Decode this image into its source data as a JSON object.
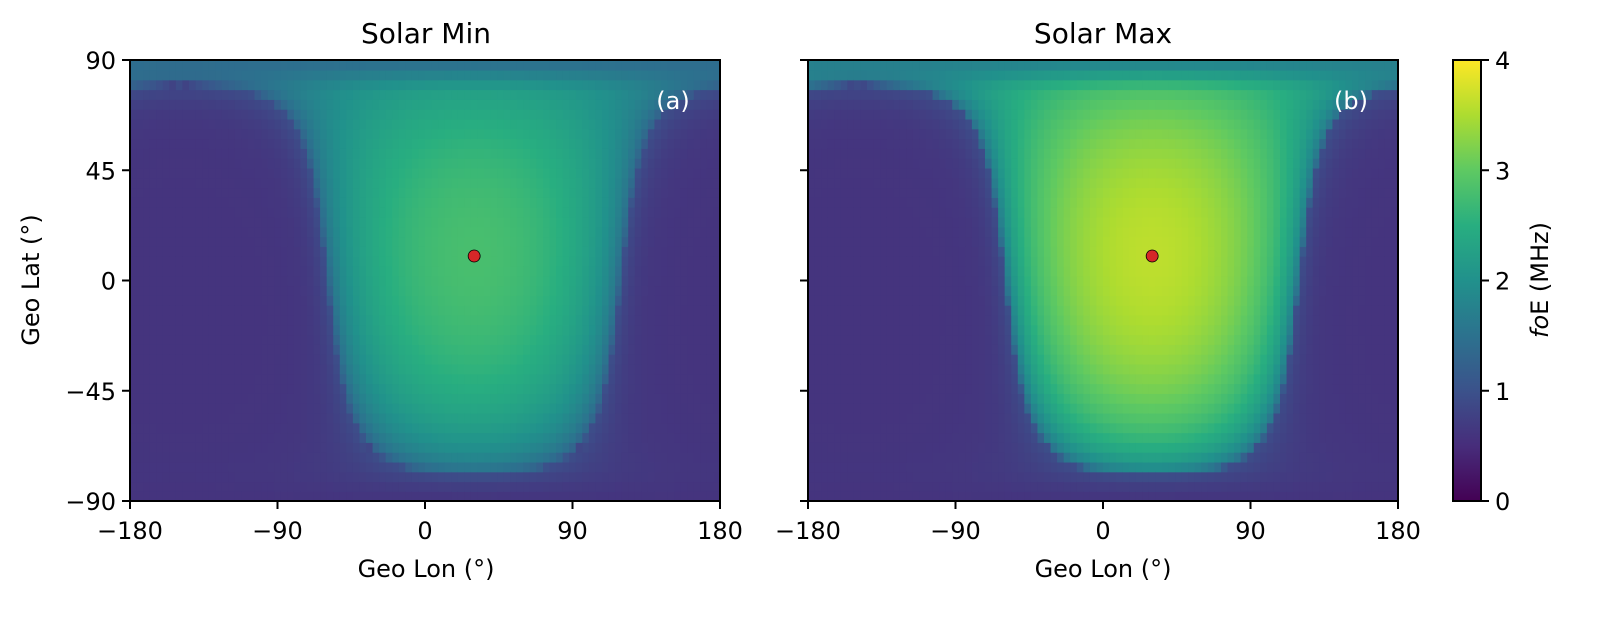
{
  "chart_data": [
    {
      "type": "heatmap",
      "title": "Solar Min",
      "panel_label": "(a)",
      "xlabel": "Geo Lon (°)",
      "ylabel": "Geo Lat (°)",
      "xlim": [
        -180,
        180
      ],
      "ylim": [
        -90,
        90
      ],
      "xticks": [
        -180,
        -90,
        0,
        90,
        180
      ],
      "yticks": [
        90,
        45,
        0,
        -45,
        -90
      ],
      "xtick_labels": [
        "−180",
        "−90",
        "0",
        "90",
        "180"
      ],
      "ytick_labels": [
        "90",
        "45",
        "0",
        "−45",
        "−90"
      ],
      "subsolar_point": {
        "lon": 30,
        "lat": 10,
        "color": "#d62728"
      },
      "peak_value": 2.8,
      "night_value": 0.6,
      "units": "MHz",
      "colormap": "viridis"
    },
    {
      "type": "heatmap",
      "title": "Solar Max",
      "panel_label": "(b)",
      "xlabel": "Geo Lon (°)",
      "ylabel": "",
      "xlim": [
        -180,
        180
      ],
      "ylim": [
        -90,
        90
      ],
      "xticks": [
        -180,
        -90,
        0,
        90,
        180
      ],
      "yticks": [
        90,
        45,
        0,
        -45,
        -90
      ],
      "xtick_labels": [
        "−180",
        "−90",
        "0",
        "90",
        "180"
      ],
      "ytick_labels": [],
      "subsolar_point": {
        "lon": 30,
        "lat": 10,
        "color": "#d62728"
      },
      "peak_value": 3.6,
      "night_value": 0.6,
      "units": "MHz",
      "colormap": "viridis"
    }
  ],
  "colorbar": {
    "label_italic": "fo",
    "label_rest": "E (MHz)",
    "ticks": [
      0,
      1,
      2,
      3,
      4
    ],
    "tick_labels": [
      "0",
      "1",
      "2",
      "3",
      "4"
    ],
    "range": [
      0,
      4
    ],
    "colormap": "viridis"
  }
}
